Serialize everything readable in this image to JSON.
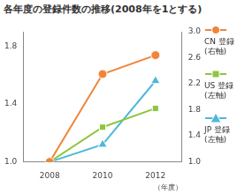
{
  "chart_data": {
    "type": "line",
    "title": "各年度の登録件数の推移(2008年を1とする)",
    "x_label": "（年度）",
    "categories": [
      "2008",
      "2010",
      "2012"
    ],
    "ylim": [
      1.0,
      1.9
    ],
    "yticks": [
      {
        "value": 1,
        "label": "1.0"
      },
      {
        "value": 1.4,
        "label": "1.4"
      },
      {
        "value": 1.8,
        "label": "1.8"
      }
    ],
    "y2lim": [
      1.0,
      3.0
    ],
    "y2ticks": [
      {
        "value": 1,
        "label": "1.0"
      },
      {
        "value": 1.4,
        "label": "1.4"
      },
      {
        "value": 1.8,
        "label": "1.8"
      },
      {
        "value": 2.2,
        "label": "2.2"
      },
      {
        "value": 2.6,
        "label": "2.6"
      },
      {
        "value": 3,
        "label": "3.0"
      }
    ],
    "grid": false,
    "legend": "right",
    "series": [
      {
        "name": "CN 登録(右軸)",
        "color": "#f0853a",
        "marker": "circle",
        "axis": "y2",
        "values": [
          1.0,
          2.35,
          2.64
        ]
      },
      {
        "name": "US 登録(左軸)",
        "color": "#8dc63f",
        "marker": "square",
        "values": [
          1.0,
          1.24,
          1.37
        ]
      },
      {
        "name": "JP 登録(左軸)",
        "color": "#4fb8d8",
        "marker": "triangle",
        "values": [
          1.0,
          1.12,
          1.56
        ]
      }
    ]
  }
}
